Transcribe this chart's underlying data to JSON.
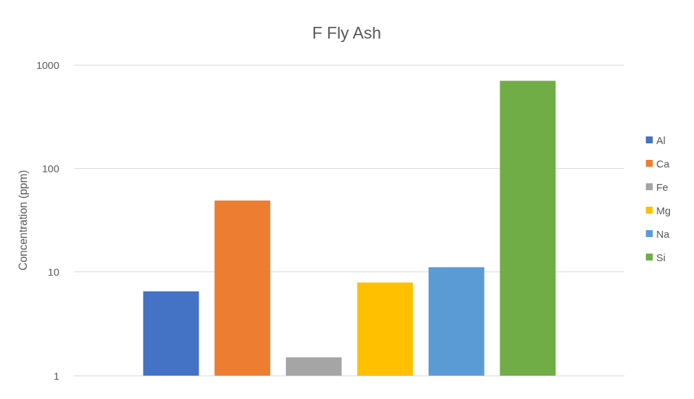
{
  "chart_data": {
    "type": "bar",
    "title": "F Fly Ash",
    "ylabel": "Concentration (ppm)",
    "categories": [
      null
    ],
    "series": [
      {
        "name": "Al",
        "color": "#4472c4",
        "values": [
          6.5
        ]
      },
      {
        "name": "Ca",
        "color": "#ed7d31",
        "values": [
          49
        ]
      },
      {
        "name": "Fe",
        "color": "#a5a5a5",
        "values": [
          1.5
        ]
      },
      {
        "name": "Mg",
        "color": "#ffc000",
        "values": [
          7.9
        ]
      },
      {
        "name": "Na",
        "color": "#5b9bd5",
        "values": [
          11.1
        ]
      },
      {
        "name": "Si",
        "color": "#70ad47",
        "values": [
          700
        ]
      }
    ],
    "log": "y",
    "ylim": [
      1,
      1000
    ],
    "yticks": [
      1,
      10,
      100,
      1000
    ],
    "grid": "y",
    "legend": "right"
  }
}
